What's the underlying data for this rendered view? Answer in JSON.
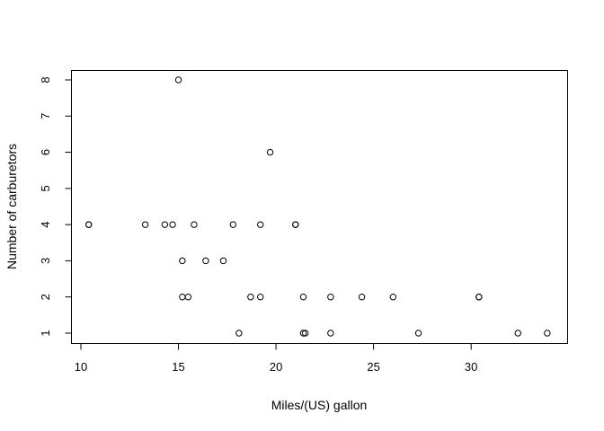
{
  "chart_data": {
    "type": "scatter",
    "xlabel": "Miles/(US) gallon",
    "ylabel": "Number of carburetors",
    "xlim": [
      10,
      34
    ],
    "ylim": [
      1,
      8
    ],
    "x_ticks": [
      10,
      15,
      20,
      25,
      30
    ],
    "y_ticks": [
      1,
      2,
      3,
      4,
      5,
      6,
      7,
      8
    ],
    "grid": false,
    "points": [
      {
        "x": 21.0,
        "y": 4
      },
      {
        "x": 21.0,
        "y": 4
      },
      {
        "x": 22.8,
        "y": 1
      },
      {
        "x": 21.4,
        "y": 1
      },
      {
        "x": 18.7,
        "y": 2
      },
      {
        "x": 18.1,
        "y": 1
      },
      {
        "x": 14.3,
        "y": 4
      },
      {
        "x": 24.4,
        "y": 2
      },
      {
        "x": 22.8,
        "y": 2
      },
      {
        "x": 19.2,
        "y": 4
      },
      {
        "x": 17.8,
        "y": 4
      },
      {
        "x": 16.4,
        "y": 3
      },
      {
        "x": 17.3,
        "y": 3
      },
      {
        "x": 15.2,
        "y": 3
      },
      {
        "x": 10.4,
        "y": 4
      },
      {
        "x": 10.4,
        "y": 4
      },
      {
        "x": 14.7,
        "y": 4
      },
      {
        "x": 32.4,
        "y": 1
      },
      {
        "x": 30.4,
        "y": 2
      },
      {
        "x": 33.9,
        "y": 1
      },
      {
        "x": 21.5,
        "y": 1
      },
      {
        "x": 15.5,
        "y": 2
      },
      {
        "x": 15.2,
        "y": 2
      },
      {
        "x": 13.3,
        "y": 4
      },
      {
        "x": 19.2,
        "y": 2
      },
      {
        "x": 27.3,
        "y": 1
      },
      {
        "x": 26.0,
        "y": 2
      },
      {
        "x": 30.4,
        "y": 2
      },
      {
        "x": 15.8,
        "y": 4
      },
      {
        "x": 19.7,
        "y": 6
      },
      {
        "x": 15.0,
        "y": 8
      },
      {
        "x": 21.4,
        "y": 2
      }
    ]
  }
}
